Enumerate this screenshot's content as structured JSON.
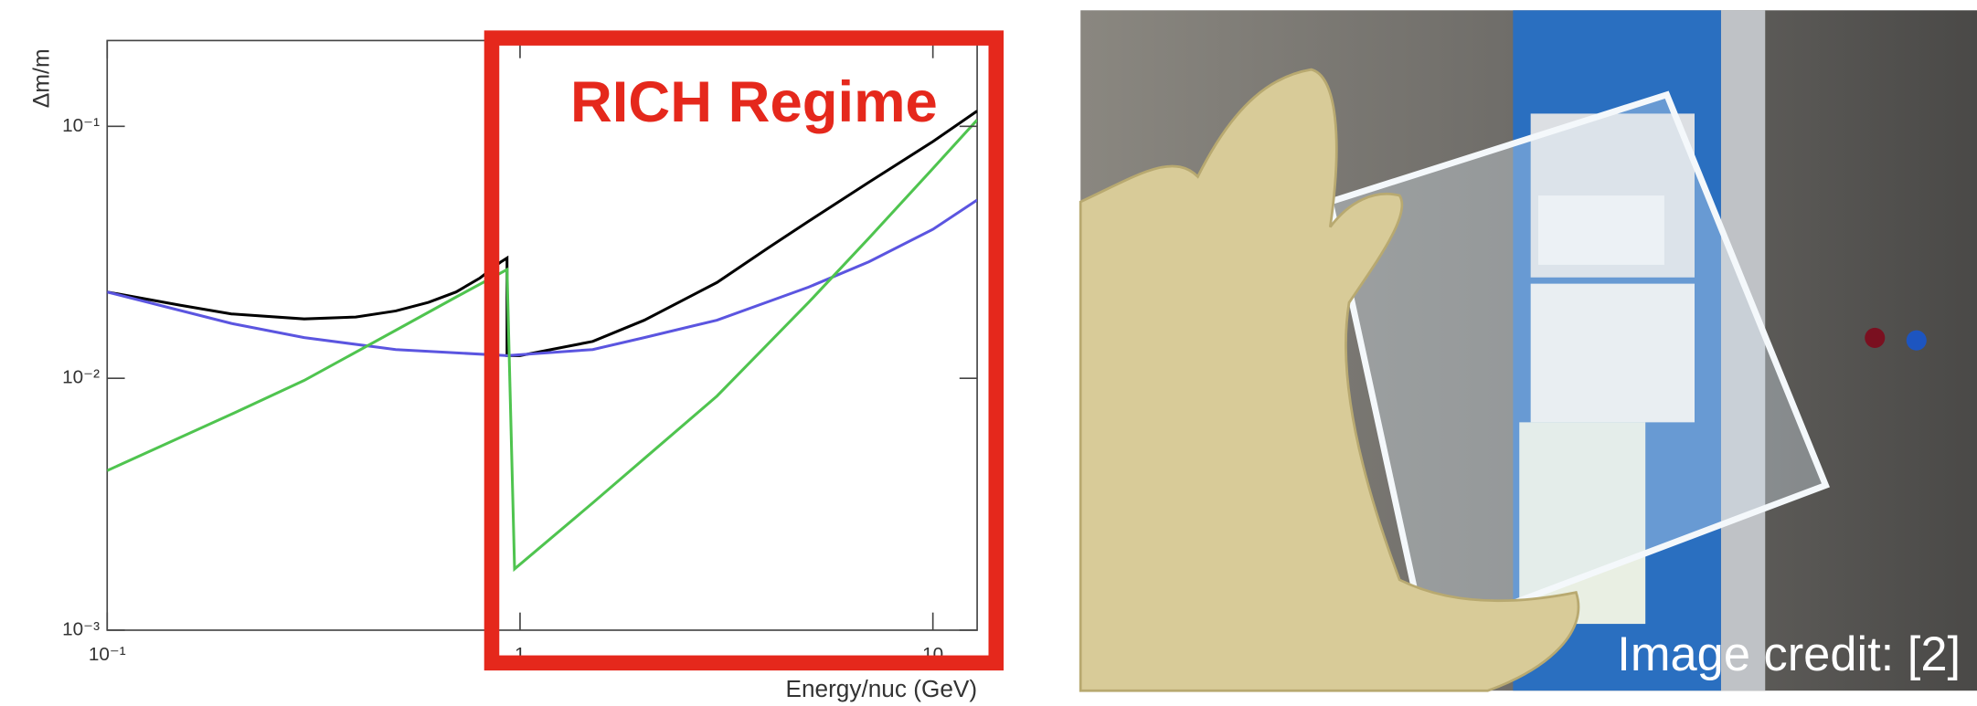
{
  "chart_data": {
    "type": "line",
    "xlabel": "Energy/nuc (GeV)",
    "ylabel": "Δm/m",
    "annotation": "RICH Regime",
    "xscale": "log",
    "yscale": "log",
    "xlim": [
      0.1,
      12.8
    ],
    "ylim": [
      0.001,
      0.219
    ],
    "xticks": [
      {
        "value": 0.1,
        "label": "10⁻¹"
      },
      1,
      10
    ],
    "yticks": [
      {
        "value": 0.001,
        "label": "10⁻³"
      },
      {
        "value": 0.01,
        "label": "10⁻²"
      },
      {
        "value": 0.1,
        "label": "10⁻¹"
      }
    ],
    "series": [
      {
        "color": "#000000",
        "x": [
          0.1,
          0.15,
          0.2,
          0.3,
          0.4,
          0.5,
          0.6,
          0.7,
          0.8,
          0.9,
          0.93,
          0.93,
          1,
          1.5,
          2,
          3,
          4,
          5,
          7,
          10,
          12.8
        ],
        "values": [
          0.022,
          0.0195,
          0.018,
          0.0172,
          0.0175,
          0.0185,
          0.02,
          0.022,
          0.025,
          0.029,
          0.03,
          0.0123,
          0.0123,
          0.014,
          0.017,
          0.024,
          0.033,
          0.042,
          0.06,
          0.087,
          0.115
        ]
      },
      {
        "color": "#5b55e0",
        "x": [
          0.1,
          0.2,
          0.3,
          0.5,
          0.93,
          1.5,
          2,
          3,
          5,
          7,
          10,
          12.8
        ],
        "values": [
          0.022,
          0.0165,
          0.0145,
          0.013,
          0.0123,
          0.013,
          0.0145,
          0.017,
          0.023,
          0.029,
          0.039,
          0.051
        ]
      },
      {
        "color": "#4fc44f",
        "x": [
          0.1,
          0.2,
          0.3,
          0.5,
          0.7,
          0.93,
          0.97,
          1.5,
          2,
          3,
          5,
          7,
          10,
          12.8
        ],
        "values": [
          0.0043,
          0.0072,
          0.0098,
          0.0155,
          0.021,
          0.027,
          0.00175,
          0.0032,
          0.0048,
          0.0085,
          0.02,
          0.036,
          0.068,
          0.106
        ]
      }
    ]
  },
  "photo": {
    "caption": "Image credit: [2]"
  }
}
